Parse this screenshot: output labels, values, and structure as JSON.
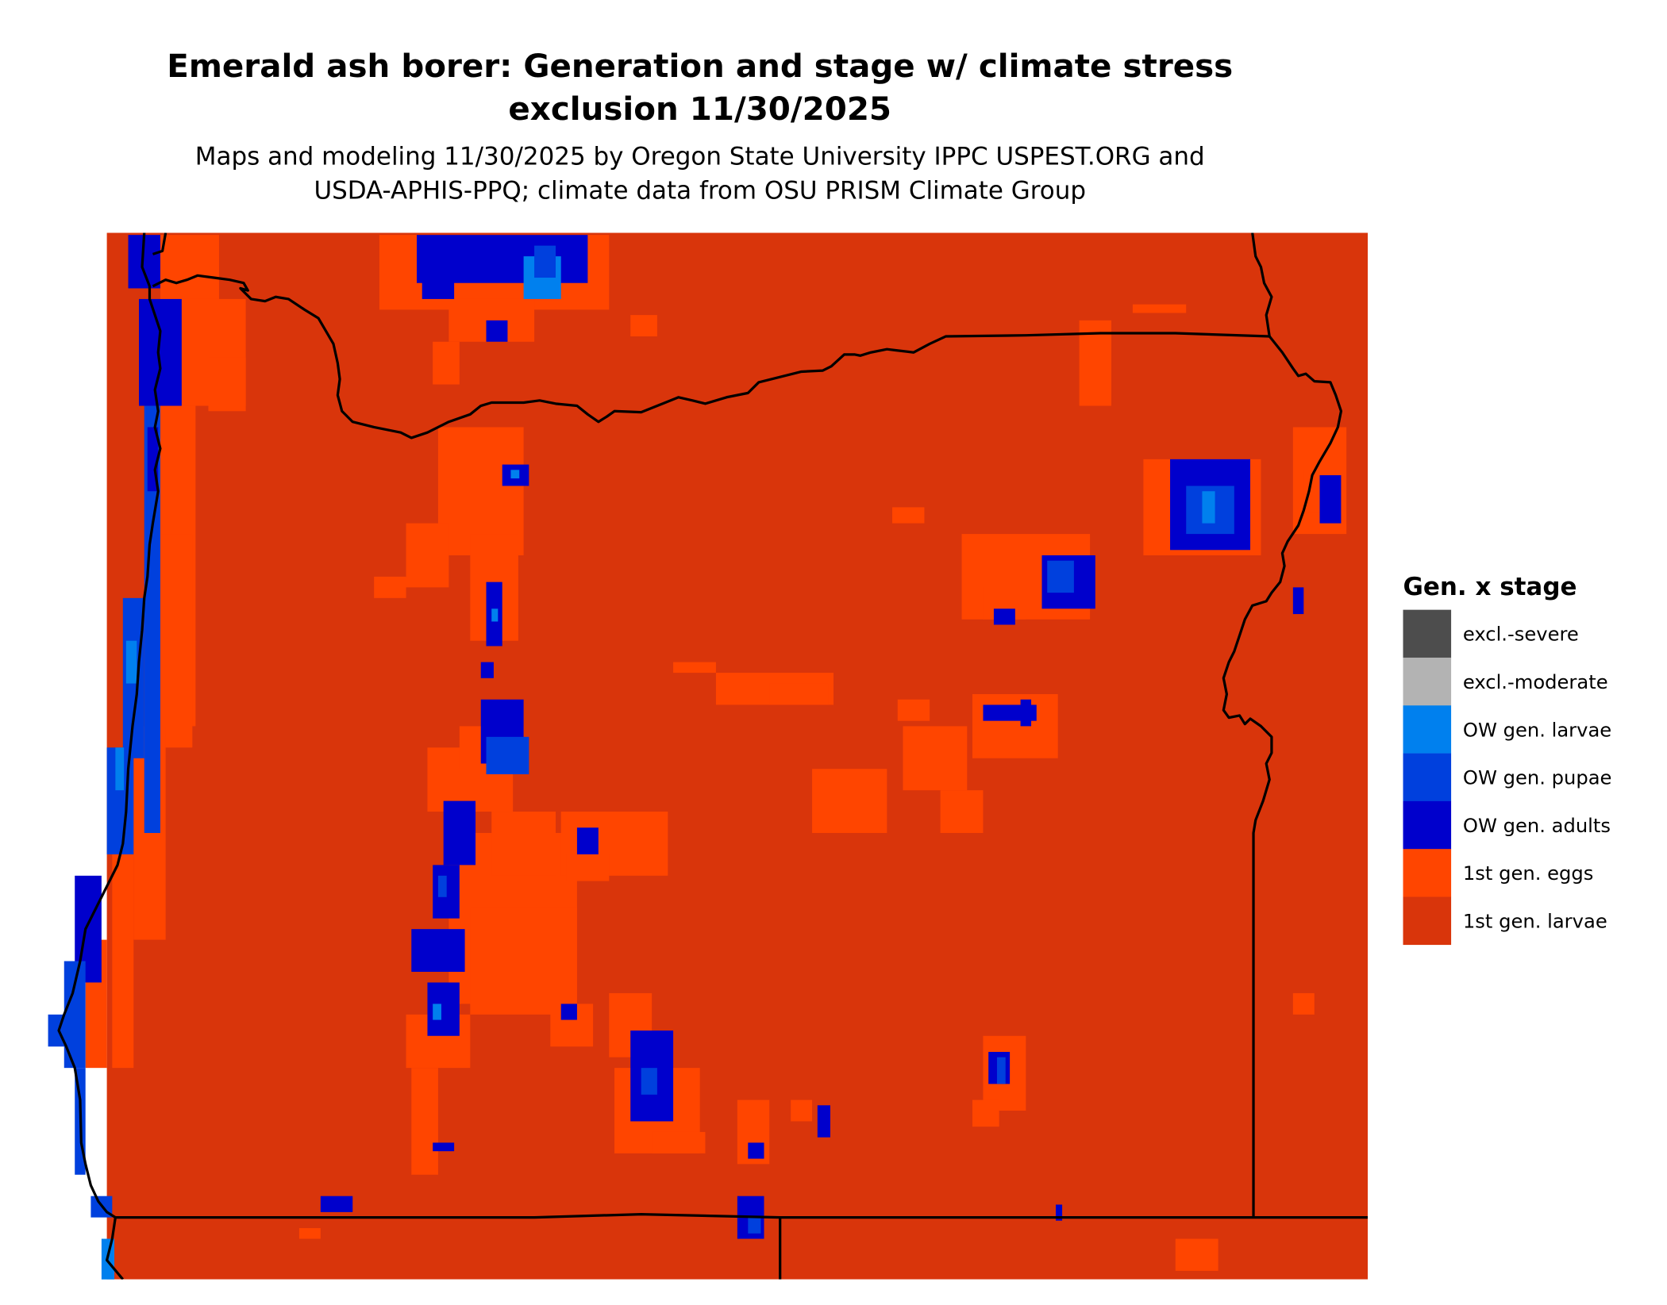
{
  "title": {
    "line1": "Emerald ash borer: Generation and stage w/ climate stress",
    "line2": "exclusion 11/30/2025"
  },
  "subtitle": {
    "line1": "Maps and modeling 11/30/2025 by Oregon State University IPPC USPEST.ORG and",
    "line2": "USDA-APHIS-PPQ; climate data from OSU PRISM Climate Group"
  },
  "legend": {
    "title": "Gen. x stage",
    "items": [
      {
        "label": "excl.-severe",
        "color": "#4d4d4d"
      },
      {
        "label": "excl.-moderate",
        "color": "#b3b3b3"
      },
      {
        "label": "OW gen. larvae",
        "color": "#0080ee"
      },
      {
        "label": "OW gen. pupae",
        "color": "#0040dd"
      },
      {
        "label": "OW gen. adults",
        "color": "#0000cc"
      },
      {
        "label": "1st gen. eggs",
        "color": "#ff4500"
      },
      {
        "label": "1st gen. larvae",
        "color": "#d9350b"
      }
    ]
  },
  "map": {
    "boundary_color": "#000000"
  }
}
